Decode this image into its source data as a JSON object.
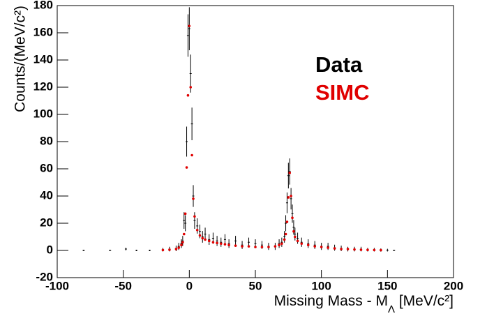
{
  "chart_data": {
    "type": "scatter",
    "xlabel": [
      "Missing Mass - M",
      "Λ",
      " [MeV/c²]"
    ],
    "ylabel": "Counts/(MeV/c²)",
    "xlim": [
      -100,
      200
    ],
    "xticks": [
      -100,
      -50,
      0,
      50,
      100,
      150,
      200
    ],
    "ylim": [
      -20,
      180
    ],
    "yticks": [
      -20,
      0,
      20,
      40,
      60,
      80,
      100,
      120,
      140,
      160,
      180
    ],
    "series": [
      {
        "name": "Data",
        "color": "#000000",
        "x": [
          -80,
          -60,
          -48,
          -40,
          -30,
          -20,
          -20,
          -15,
          -10,
          -8,
          -6,
          -5,
          -4,
          -3,
          -2,
          -1,
          0,
          1,
          2,
          3,
          4,
          6,
          8,
          10,
          12,
          15,
          18,
          21,
          24,
          27,
          30,
          35,
          40,
          45,
          50,
          55,
          60,
          65,
          68,
          70,
          72,
          73,
          74,
          75,
          76,
          77,
          78,
          79,
          80,
          82,
          85,
          90,
          95,
          100,
          105,
          110,
          115,
          120,
          125,
          130,
          135,
          140,
          145,
          150,
          155
        ],
        "values": [
          0,
          0,
          1,
          0,
          0,
          0.5,
          0.5,
          1,
          1.5,
          3,
          5,
          7,
          22,
          20,
          80,
          158,
          163,
          130,
          93,
          40,
          22,
          18,
          14,
          10,
          12,
          8,
          9,
          7,
          6,
          8,
          5,
          7,
          4,
          6,
          5,
          4,
          3,
          3,
          5,
          6,
          10,
          20,
          35,
          55,
          58,
          38,
          27,
          17,
          12,
          9,
          6,
          5,
          4,
          3,
          3,
          2,
          1.5,
          1,
          1,
          1,
          0.5,
          0.5,
          0.3,
          0.2,
          0
        ],
        "errors": [
          0.5,
          0.5,
          1,
          0.5,
          0.5,
          0.7,
          1.3,
          1.7,
          2,
          2.6,
          3.2,
          3.7,
          6.1,
          5.9,
          11,
          15.6,
          15.8,
          14,
          12,
          8,
          6.1,
          5.6,
          5,
          4.3,
          4.7,
          3.9,
          4.1,
          3.7,
          3.4,
          3.9,
          3.2,
          3.7,
          2.9,
          3.4,
          3.2,
          2.9,
          2.6,
          2.6,
          3.2,
          3.4,
          4.3,
          5.9,
          7.6,
          9.4,
          9.6,
          7.9,
          6.7,
          5.4,
          4.7,
          4.1,
          3.4,
          3.2,
          2.9,
          2.6,
          2.6,
          2.2,
          2,
          1.7,
          1.7,
          1.7,
          1.3,
          1.3,
          1.2,
          1,
          0.5
        ]
      },
      {
        "name": "SIMC",
        "color": "#e00000",
        "x": [
          -20,
          -15,
          -10,
          -8,
          -6,
          -5,
          -4,
          -3,
          -2,
          -1,
          0,
          1,
          2,
          3,
          4,
          6,
          8,
          10,
          12,
          15,
          18,
          21,
          24,
          27,
          30,
          35,
          40,
          45,
          50,
          55,
          60,
          65,
          68,
          70,
          72,
          73,
          74,
          75,
          76,
          77,
          78,
          79,
          80,
          82,
          85,
          90,
          95,
          100,
          105,
          110,
          115,
          120,
          125,
          130,
          135,
          140,
          145
        ],
        "values": [
          0.3,
          0.5,
          1,
          2,
          4,
          6,
          12,
          27,
          61,
          114,
          165,
          120,
          70,
          38,
          25,
          15,
          11,
          9,
          8,
          7,
          6,
          5.5,
          5,
          4.5,
          4,
          3.5,
          3,
          3,
          2.5,
          2.5,
          2.5,
          3,
          4,
          5,
          8,
          12,
          21,
          39,
          57,
          40,
          24,
          14,
          10,
          7,
          5,
          4,
          3,
          2.5,
          2,
          1.5,
          1,
          1,
          0.7,
          0.5,
          0.4,
          0.3,
          0.2
        ]
      }
    ]
  }
}
